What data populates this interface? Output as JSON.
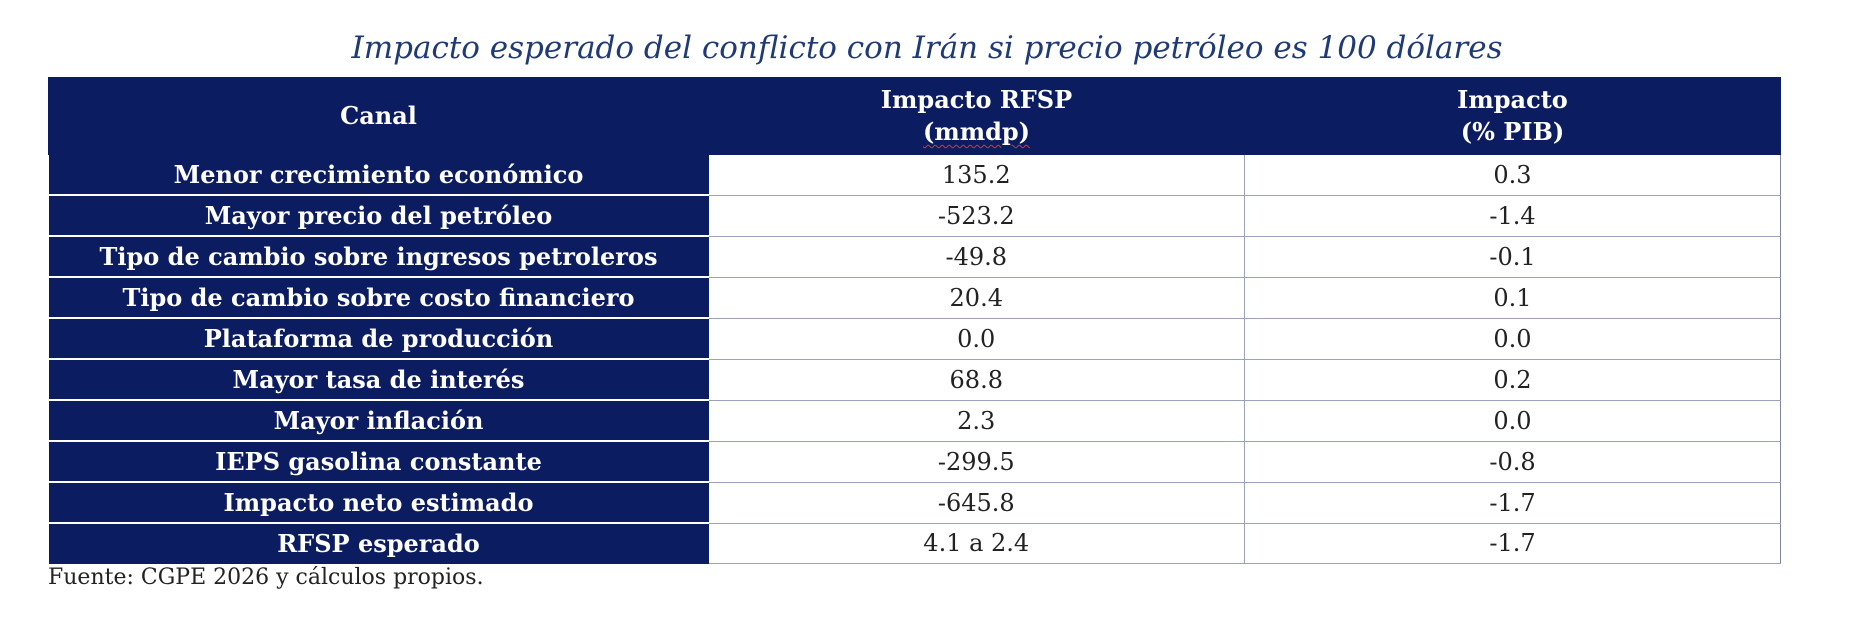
{
  "title": "Impacto esperado del conflicto con Irán si precio petróleo es 100 dólares",
  "headers": {
    "canal": "Canal",
    "rfsp_line1": "Impacto RFSP",
    "rfsp_line2": "(mmdp)",
    "pib_line1": "Impacto",
    "pib_line2": "(% PIB)"
  },
  "rows": [
    {
      "canal": "Menor crecimiento económico",
      "rfsp": "135.2",
      "pib": "0.3"
    },
    {
      "canal": "Mayor precio del petróleo",
      "rfsp": "-523.2",
      "pib": "-1.4"
    },
    {
      "canal": "Tipo de cambio sobre ingresos petroleros",
      "rfsp": "-49.8",
      "pib": "-0.1"
    },
    {
      "canal": "Tipo de cambio sobre costo financiero",
      "rfsp": "20.4",
      "pib": "0.1"
    },
    {
      "canal": "Plataforma de producción",
      "rfsp": "0.0",
      "pib": "0.0"
    },
    {
      "canal": "Mayor tasa de interés",
      "rfsp": "68.8",
      "pib": "0.2"
    },
    {
      "canal": "Mayor inflación",
      "rfsp": "2.3",
      "pib": "0.0"
    },
    {
      "canal": "IEPS gasolina constante",
      "rfsp": "-299.5",
      "pib": "-0.8"
    },
    {
      "canal": "Impacto neto estimado",
      "rfsp": "-645.8",
      "pib": "-1.7"
    },
    {
      "canal": "RFSP esperado",
      "rfsp": "4.1 a 2.4",
      "pib": "-1.7"
    }
  ],
  "source": "Fuente: CGPE 2026 y cálculos propios.",
  "colors": {
    "header_bg": "#0b1c60",
    "title": "#1f3a74"
  }
}
